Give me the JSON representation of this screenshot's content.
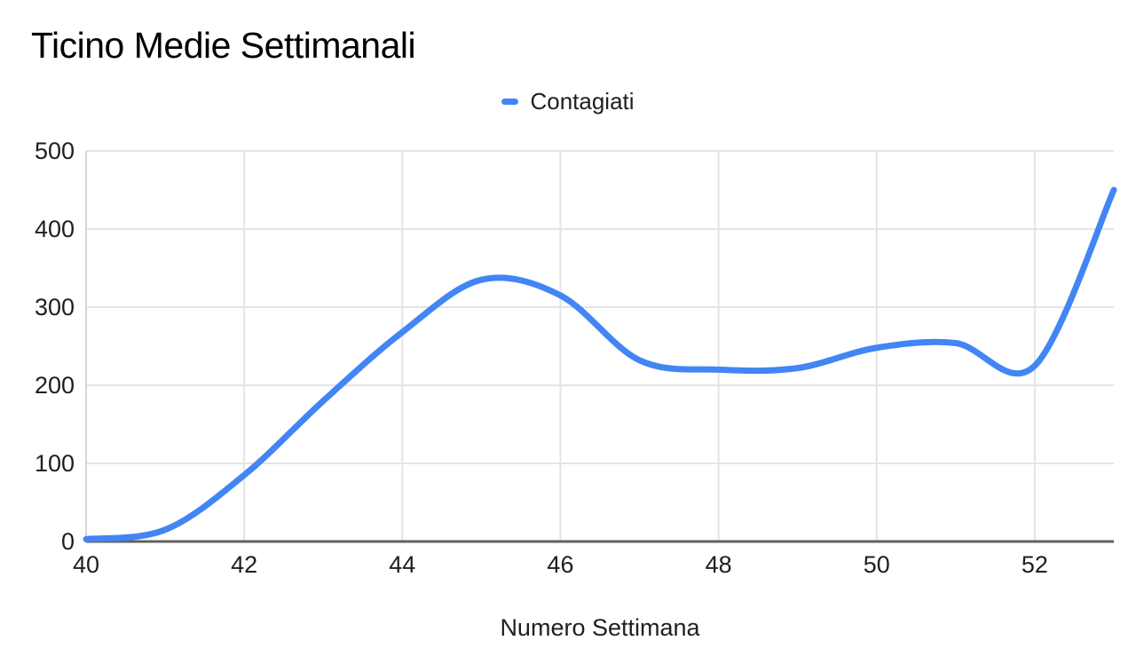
{
  "title": "Ticino Medie Settimanali",
  "legend": {
    "position": "top",
    "series_label": "Contagiati"
  },
  "x_axis_title": "Numero Settimana",
  "colors": {
    "line": "#4285f4",
    "gridline": "#e4e4e4",
    "plot_left_border": "#d6d6d6",
    "axis_line": "#616161",
    "tick_label": "#1f1f1f",
    "title": "#000000",
    "background": "#ffffff"
  },
  "chart_data": {
    "type": "line",
    "smooth": true,
    "title": "Ticino Medie Settimanali",
    "xlabel": "Numero Settimana",
    "ylabel": "",
    "x": [
      40,
      41,
      42,
      43,
      44,
      45,
      46,
      47,
      48,
      49,
      50,
      51,
      52,
      53
    ],
    "series": [
      {
        "name": "Contagiati",
        "color": "#4285f4",
        "values": [
          3,
          15,
          85,
          180,
          268,
          335,
          315,
          232,
          220,
          222,
          248,
          254,
          225,
          450
        ]
      }
    ],
    "xlim": [
      40,
      53
    ],
    "ylim": [
      0,
      500
    ],
    "x_ticks": [
      40,
      42,
      44,
      46,
      48,
      50,
      52
    ],
    "y_ticks": [
      0,
      100,
      200,
      300,
      400,
      500
    ],
    "grid": "on",
    "legend_position": "top"
  }
}
